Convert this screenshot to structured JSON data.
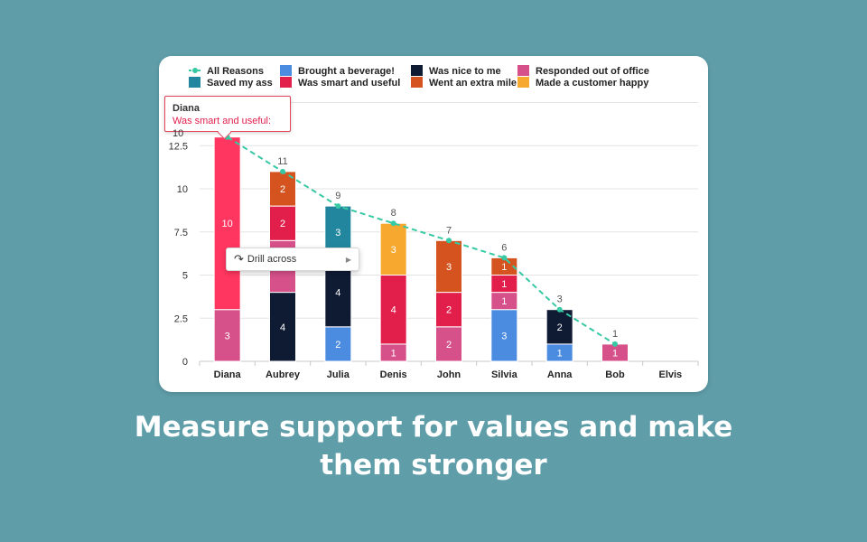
{
  "caption": {
    "line1": "Measure support for values and make",
    "line2": "them stronger"
  },
  "tooltip": {
    "title": "Diana",
    "series": "Was smart and useful:",
    "value": "10"
  },
  "menu": {
    "drill_label": "Drill across",
    "icon": "redo-arrow-icon",
    "chevron": "chevron-right-icon"
  },
  "chart_data": {
    "type": "bar",
    "stacked": true,
    "categories": [
      "Diana",
      "Aubrey",
      "Julia",
      "Denis",
      "John",
      "Silvia",
      "Anna",
      "Bob",
      "Elvis"
    ],
    "ylim": [
      0,
      15
    ],
    "yticks": [
      0,
      2.5,
      5,
      7.5,
      10,
      12.5
    ],
    "grid": true,
    "legend_position": "top",
    "series": [
      {
        "name": "Brought a beverage!",
        "color": "#4b8be0",
        "values": [
          0,
          0,
          2,
          0,
          0,
          3,
          1,
          0,
          0
        ]
      },
      {
        "name": "Was nice to me",
        "color": "#0f1a33",
        "values": [
          0,
          4,
          4,
          0,
          0,
          0,
          2,
          0,
          0
        ]
      },
      {
        "name": "Responded out of office",
        "color": "#d6508a",
        "values": [
          3,
          3,
          0,
          1,
          2,
          1,
          0,
          1,
          0
        ]
      },
      {
        "name": "Saved my ass",
        "color": "#22879e",
        "values": [
          0,
          0,
          3,
          0,
          0,
          0,
          0,
          0,
          0
        ]
      },
      {
        "name": "Was smart and useful",
        "color": "#e21e4b",
        "values": [
          10,
          2,
          0,
          4,
          2,
          1,
          0,
          0,
          0
        ]
      },
      {
        "name": "Went an extra mile",
        "color": "#d4531e",
        "values": [
          0,
          2,
          0,
          0,
          3,
          1,
          0,
          0,
          0
        ]
      },
      {
        "name": "Made a customer happy",
        "color": "#f7a82e",
        "values": [
          0,
          0,
          0,
          3,
          0,
          0,
          0,
          0,
          0
        ]
      }
    ],
    "line_series": {
      "name": "All Reasons",
      "color": "#36c9a3",
      "values": [
        13,
        11,
        9,
        8,
        7,
        6,
        3,
        1,
        0
      ]
    },
    "line_labels": [
      null,
      11,
      9,
      8,
      7,
      6,
      3,
      1,
      null
    ],
    "highlight": {
      "category": "Diana",
      "series": "Was smart and useful",
      "color": "#ff3660"
    },
    "legend_order": [
      "All Reasons",
      "Brought a beverage!",
      "Was nice to me",
      "Responded out of office",
      "Saved my ass",
      "Was smart and useful",
      "Went an extra mile",
      "Made a customer happy"
    ]
  }
}
